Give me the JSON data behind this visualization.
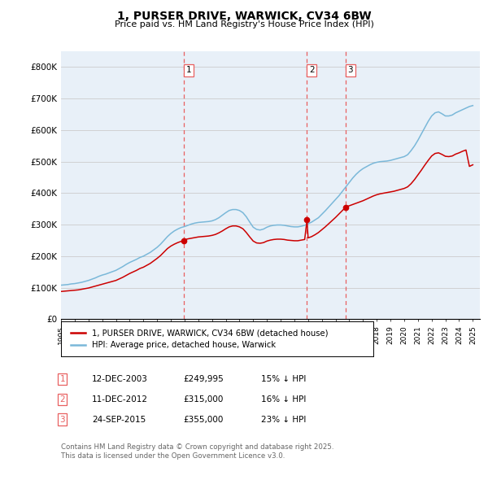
{
  "title": "1, PURSER DRIVE, WARWICK, CV34 6BW",
  "subtitle": "Price paid vs. HM Land Registry's House Price Index (HPI)",
  "ylabel_ticks": [
    "£0",
    "£100K",
    "£200K",
    "£300K",
    "£400K",
    "£500K",
    "£600K",
    "£700K",
    "£800K"
  ],
  "ytick_values": [
    0,
    100000,
    200000,
    300000,
    400000,
    500000,
    600000,
    700000,
    800000
  ],
  "ylim": [
    0,
    850000
  ],
  "xlim_start": 1995.0,
  "xlim_end": 2025.5,
  "hpi_color": "#7ab8d9",
  "price_color": "#cc0000",
  "vline_color": "#e86060",
  "grid_color": "#cccccc",
  "background_color": "#e8f0f8",
  "sale_dates": [
    2003.95,
    2012.92,
    2015.73
  ],
  "sale_prices": [
    249995,
    315000,
    355000
  ],
  "sale_labels": [
    "1",
    "2",
    "3"
  ],
  "legend_entries": [
    "1, PURSER DRIVE, WARWICK, CV34 6BW (detached house)",
    "HPI: Average price, detached house, Warwick"
  ],
  "table_rows": [
    [
      "1",
      "12-DEC-2003",
      "£249,995",
      "15% ↓ HPI"
    ],
    [
      "2",
      "11-DEC-2012",
      "£315,000",
      "16% ↓ HPI"
    ],
    [
      "3",
      "24-SEP-2015",
      "£355,000",
      "23% ↓ HPI"
    ]
  ],
  "footnote": "Contains HM Land Registry data © Crown copyright and database right 2025.\nThis data is licensed under the Open Government Licence v3.0.",
  "hpi_x": [
    1995.0,
    1995.25,
    1995.5,
    1995.75,
    1996.0,
    1996.25,
    1996.5,
    1996.75,
    1997.0,
    1997.25,
    1997.5,
    1997.75,
    1998.0,
    1998.25,
    1998.5,
    1998.75,
    1999.0,
    1999.25,
    1999.5,
    1999.75,
    2000.0,
    2000.25,
    2000.5,
    2000.75,
    2001.0,
    2001.25,
    2001.5,
    2001.75,
    2002.0,
    2002.25,
    2002.5,
    2002.75,
    2003.0,
    2003.25,
    2003.5,
    2003.75,
    2004.0,
    2004.25,
    2004.5,
    2004.75,
    2005.0,
    2005.25,
    2005.5,
    2005.75,
    2006.0,
    2006.25,
    2006.5,
    2006.75,
    2007.0,
    2007.25,
    2007.5,
    2007.75,
    2008.0,
    2008.25,
    2008.5,
    2008.75,
    2009.0,
    2009.25,
    2009.5,
    2009.75,
    2010.0,
    2010.25,
    2010.5,
    2010.75,
    2011.0,
    2011.25,
    2011.5,
    2011.75,
    2012.0,
    2012.25,
    2012.5,
    2012.75,
    2013.0,
    2013.25,
    2013.5,
    2013.75,
    2014.0,
    2014.25,
    2014.5,
    2014.75,
    2015.0,
    2015.25,
    2015.5,
    2015.75,
    2016.0,
    2016.25,
    2016.5,
    2016.75,
    2017.0,
    2017.25,
    2017.5,
    2017.75,
    2018.0,
    2018.25,
    2018.5,
    2018.75,
    2019.0,
    2019.25,
    2019.5,
    2019.75,
    2020.0,
    2020.25,
    2020.5,
    2020.75,
    2021.0,
    2021.25,
    2021.5,
    2021.75,
    2022.0,
    2022.25,
    2022.5,
    2022.75,
    2023.0,
    2023.25,
    2023.5,
    2023.75,
    2024.0,
    2024.25,
    2024.5,
    2024.75,
    2025.0
  ],
  "hpi_y": [
    108000,
    109000,
    110000,
    112000,
    113000,
    115000,
    117000,
    120000,
    123000,
    127000,
    131000,
    136000,
    140000,
    143000,
    147000,
    151000,
    155000,
    161000,
    167000,
    174000,
    180000,
    185000,
    190000,
    196000,
    200000,
    206000,
    212000,
    220000,
    228000,
    238000,
    250000,
    262000,
    272000,
    280000,
    286000,
    291000,
    294000,
    298000,
    302000,
    305000,
    307000,
    308000,
    309000,
    310000,
    312000,
    316000,
    322000,
    330000,
    338000,
    345000,
    348000,
    348000,
    345000,
    338000,
    325000,
    308000,
    292000,
    285000,
    283000,
    286000,
    292000,
    296000,
    298000,
    299000,
    299000,
    298000,
    296000,
    294000,
    293000,
    293000,
    295000,
    298000,
    303000,
    308000,
    315000,
    322000,
    333000,
    344000,
    356000,
    368000,
    380000,
    392000,
    406000,
    420000,
    434000,
    448000,
    460000,
    470000,
    478000,
    484000,
    490000,
    495000,
    498000,
    500000,
    501000,
    502000,
    504000,
    507000,
    510000,
    513000,
    516000,
    522000,
    535000,
    550000,
    568000,
    588000,
    608000,
    628000,
    645000,
    655000,
    658000,
    652000,
    645000,
    645000,
    648000,
    655000,
    660000,
    665000,
    670000,
    675000,
    678000
  ],
  "price_x": [
    1995.0,
    1995.25,
    1995.5,
    1995.75,
    1996.0,
    1996.25,
    1996.5,
    1996.75,
    1997.0,
    1997.25,
    1997.5,
    1997.75,
    1998.0,
    1998.25,
    1998.5,
    1998.75,
    1999.0,
    1999.25,
    1999.5,
    1999.75,
    2000.0,
    2000.25,
    2000.5,
    2000.75,
    2001.0,
    2001.25,
    2001.5,
    2001.75,
    2002.0,
    2002.25,
    2002.5,
    2002.75,
    2003.0,
    2003.25,
    2003.5,
    2003.75,
    2003.95,
    2004.0,
    2004.25,
    2004.5,
    2004.75,
    2005.0,
    2005.25,
    2005.5,
    2005.75,
    2006.0,
    2006.25,
    2006.5,
    2006.75,
    2007.0,
    2007.25,
    2007.5,
    2007.75,
    2008.0,
    2008.25,
    2008.5,
    2008.75,
    2009.0,
    2009.25,
    2009.5,
    2009.75,
    2010.0,
    2010.25,
    2010.5,
    2010.75,
    2011.0,
    2011.25,
    2011.5,
    2011.75,
    2012.0,
    2012.25,
    2012.5,
    2012.75,
    2012.92,
    2013.0,
    2013.25,
    2013.5,
    2013.75,
    2014.0,
    2014.25,
    2014.5,
    2014.75,
    2015.0,
    2015.25,
    2015.5,
    2015.73,
    2015.75,
    2016.0,
    2016.25,
    2016.5,
    2016.75,
    2017.0,
    2017.25,
    2017.5,
    2017.75,
    2018.0,
    2018.25,
    2018.5,
    2018.75,
    2019.0,
    2019.25,
    2019.5,
    2019.75,
    2020.0,
    2020.25,
    2020.5,
    2020.75,
    2021.0,
    2021.25,
    2021.5,
    2021.75,
    2022.0,
    2022.25,
    2022.5,
    2022.75,
    2023.0,
    2023.25,
    2023.5,
    2023.75,
    2024.0,
    2024.25,
    2024.5,
    2024.75,
    2025.0
  ],
  "price_y": [
    88000,
    89000,
    90000,
    91000,
    92000,
    93000,
    95000,
    97000,
    99000,
    102000,
    105000,
    108000,
    111000,
    114000,
    117000,
    120000,
    123000,
    128000,
    133000,
    139000,
    145000,
    150000,
    155000,
    161000,
    165000,
    171000,
    177000,
    185000,
    193000,
    202000,
    213000,
    224000,
    232000,
    238000,
    243000,
    247000,
    249995,
    252000,
    255000,
    257000,
    259000,
    261000,
    262000,
    263000,
    264000,
    266000,
    269000,
    274000,
    280000,
    287000,
    293000,
    296000,
    296000,
    293000,
    287000,
    275000,
    261000,
    248000,
    242000,
    241000,
    243000,
    248000,
    251000,
    253000,
    254000,
    254000,
    253000,
    251000,
    250000,
    249000,
    249000,
    251000,
    253000,
    315000,
    258000,
    262000,
    268000,
    275000,
    284000,
    293000,
    303000,
    313000,
    323000,
    334000,
    345000,
    355000,
    357000,
    360000,
    364000,
    368000,
    372000,
    376000,
    381000,
    386000,
    391000,
    395000,
    398000,
    400000,
    402000,
    404000,
    406000,
    409000,
    412000,
    415000,
    420000,
    430000,
    443000,
    458000,
    473000,
    489000,
    504000,
    518000,
    526000,
    528000,
    523000,
    517000,
    516000,
    518000,
    524000,
    528000,
    533000,
    537000,
    485000,
    490000
  ]
}
